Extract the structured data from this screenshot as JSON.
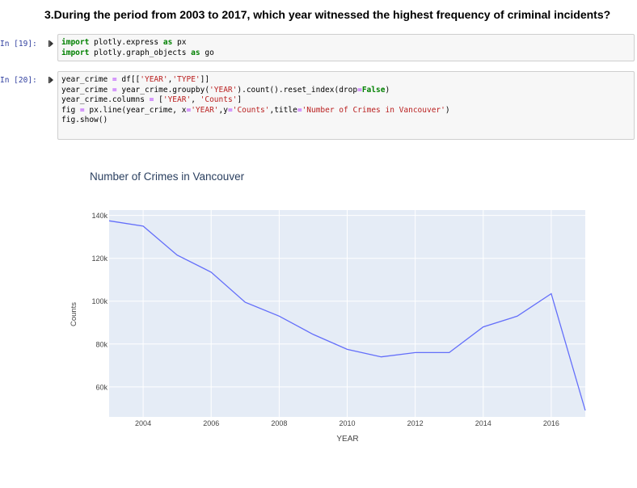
{
  "heading": "3.During the period from 2003 to 2017, which year witnessed the highest frequency of criminal incidents?",
  "cells": [
    {
      "prompt": "In [19]:",
      "lines": [
        [
          [
            "kw",
            "import"
          ],
          [
            "nm",
            " plotly.express "
          ],
          [
            "kw",
            "as"
          ],
          [
            "nm",
            " px"
          ]
        ],
        [
          [
            "kw",
            "import"
          ],
          [
            "nm",
            " plotly.graph_objects "
          ],
          [
            "kw",
            "as"
          ],
          [
            "nm",
            " go"
          ]
        ]
      ]
    },
    {
      "prompt": "In [20]:",
      "lines": [
        [
          [
            "nm",
            "year_crime "
          ],
          [
            "op",
            "="
          ],
          [
            "nm",
            " df[["
          ],
          [
            "str",
            "'YEAR'"
          ],
          [
            "nm",
            ","
          ],
          [
            "str",
            "'TYPE'"
          ],
          [
            "nm",
            "]]"
          ]
        ],
        [
          [
            "nm",
            "year_crime "
          ],
          [
            "op",
            "="
          ],
          [
            "nm",
            " year_crime.groupby("
          ],
          [
            "str",
            "'YEAR'"
          ],
          [
            "nm",
            ").count().reset_index(drop"
          ],
          [
            "op",
            "="
          ],
          [
            "kw",
            "False"
          ],
          [
            "nm",
            ")"
          ]
        ],
        [
          [
            "nm",
            "year_crime.columns "
          ],
          [
            "op",
            "="
          ],
          [
            "nm",
            " ["
          ],
          [
            "str",
            "'YEAR'"
          ],
          [
            "nm",
            ", "
          ],
          [
            "str",
            "'Counts'"
          ],
          [
            "nm",
            "]"
          ]
        ],
        [
          [
            "nm",
            "fig "
          ],
          [
            "op",
            "="
          ],
          [
            "nm",
            " px.line(year_crime, x"
          ],
          [
            "op",
            "="
          ],
          [
            "str",
            "'YEAR'"
          ],
          [
            "nm",
            ",y"
          ],
          [
            "op",
            "="
          ],
          [
            "str",
            "'Counts'"
          ],
          [
            "nm",
            ",title"
          ],
          [
            "op",
            "="
          ],
          [
            "str",
            "'Number of Crimes in Vancouver'"
          ],
          [
            "nm",
            ")"
          ]
        ],
        [
          [
            "nm",
            "fig.show()"
          ]
        ]
      ]
    }
  ],
  "colors": {
    "line": "#636efa",
    "plot_bg": "#e5ecf6",
    "grid": "#ffffff",
    "tick_text": "#444444",
    "title_text": "#2a3f5f"
  },
  "chart_data": {
    "type": "line",
    "title": "Number of Crimes in Vancouver",
    "xlabel": "YEAR",
    "ylabel": "Counts",
    "x": [
      2003,
      2004,
      2005,
      2006,
      2007,
      2008,
      2009,
      2010,
      2011,
      2012,
      2013,
      2014,
      2015,
      2016,
      2017
    ],
    "values": [
      137500,
      135000,
      121500,
      113500,
      99500,
      93000,
      84500,
      77500,
      74000,
      76000,
      76000,
      88000,
      93000,
      103500,
      49000
    ],
    "xlim": [
      2003,
      2017
    ],
    "ylim": [
      46000,
      142500
    ],
    "xticks": [
      2004,
      2006,
      2008,
      2010,
      2012,
      2014,
      2016
    ],
    "yticks": [
      60000,
      80000,
      100000,
      120000,
      140000
    ],
    "ytick_labels": [
      "60k",
      "80k",
      "100k",
      "120k",
      "140k"
    ],
    "grid": true
  }
}
